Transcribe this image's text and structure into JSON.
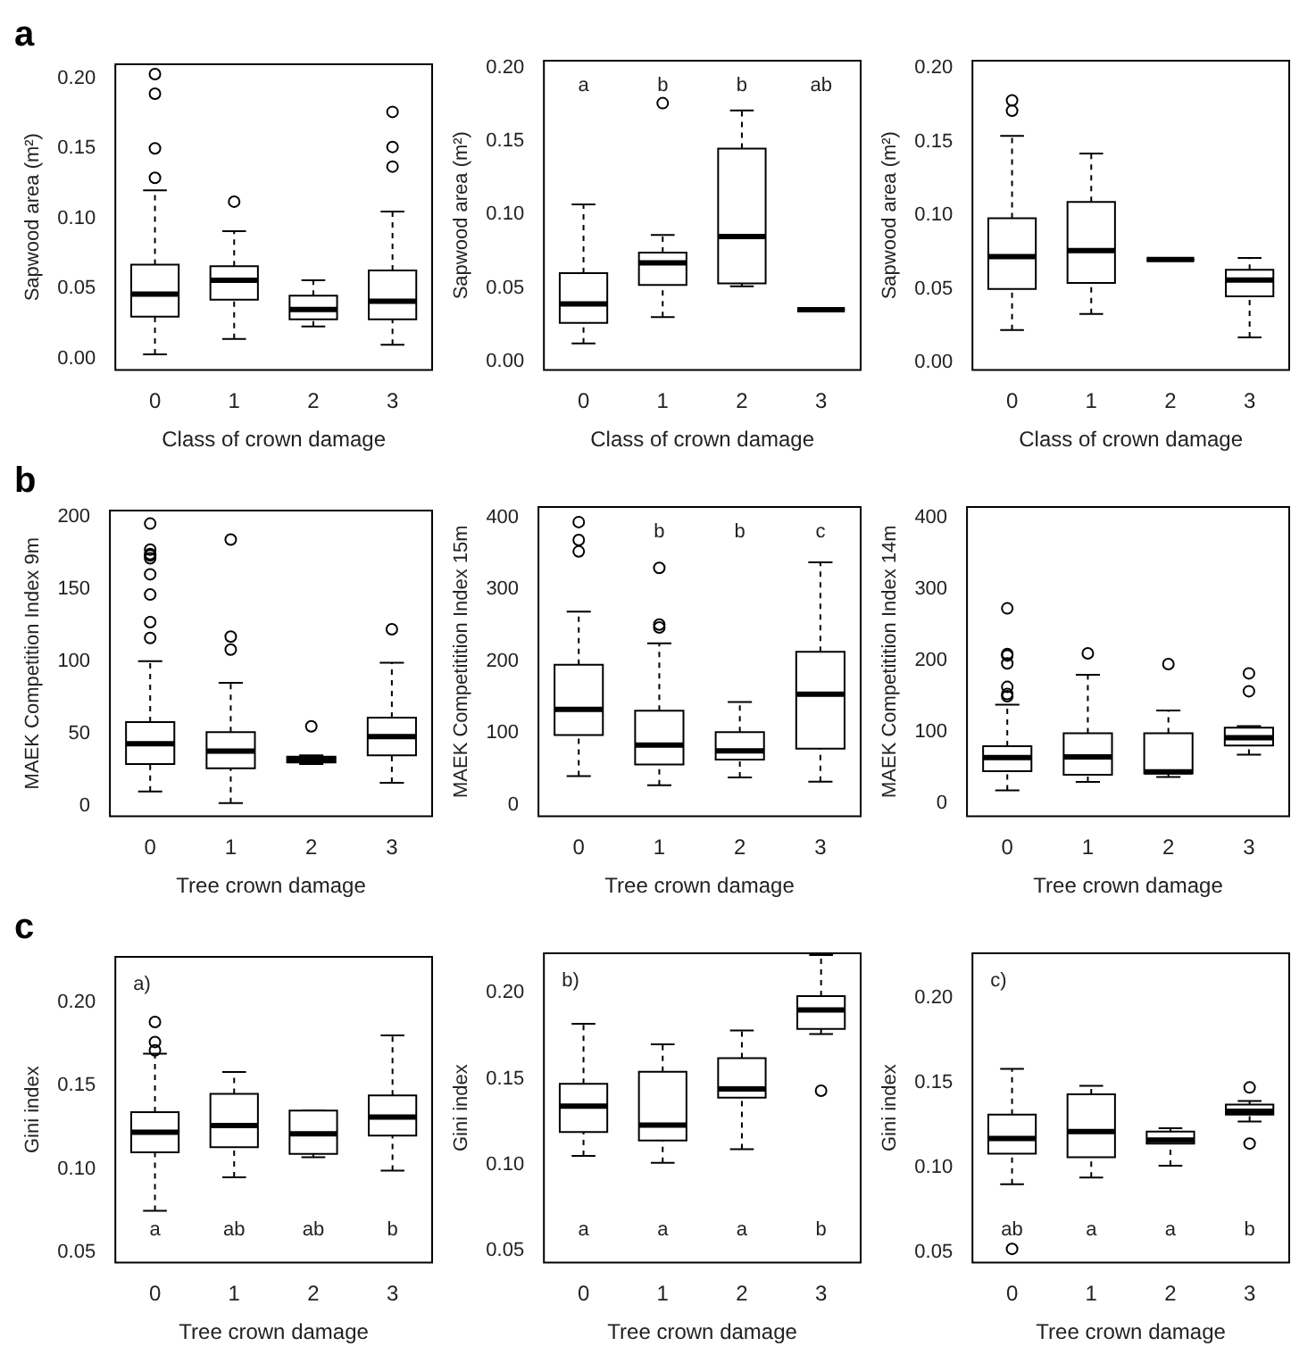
{
  "chart_data": [
    {
      "type": "box",
      "title": "a",
      "xlabel": "Class of crown damage",
      "ylabel": "Sapwood area (m²)",
      "categories": [
        "0",
        "1",
        "2",
        "3"
      ],
      "ylim": [
        -0.008,
        0.21
      ],
      "yticks": [
        {
          "value": 0,
          "label": "0.00"
        },
        {
          "value": 0.05,
          "label": "0.05"
        },
        {
          "value": 0.1,
          "label": "0.10"
        },
        {
          "value": 0.15,
          "label": "0.15"
        },
        {
          "value": 0.2,
          "label": "0.20"
        }
      ],
      "boxes": [
        {
          "low": 0.003,
          "q1": 0.03,
          "median": 0.046,
          "q3": 0.067,
          "high": 0.12,
          "outliers": [
            0.203,
            0.189,
            0.15,
            0.129
          ]
        },
        {
          "low": 0.014,
          "q1": 0.042,
          "median": 0.056,
          "q3": 0.066,
          "high": 0.091,
          "outliers": [
            0.112
          ]
        },
        {
          "low": 0.023,
          "q1": 0.028,
          "median": 0.035,
          "q3": 0.045,
          "high": 0.056
        },
        {
          "low": 0.01,
          "q1": 0.028,
          "median": 0.041,
          "q3": 0.063,
          "high": 0.105,
          "outliers": [
            0.176,
            0.151,
            0.137
          ]
        }
      ]
    },
    {
      "type": "box",
      "xlabel": "Class of crown damage",
      "ylabel": "Sapwood area (m²)",
      "categories": [
        "0",
        "1",
        "2",
        "3"
      ],
      "ylim": [
        -0.006,
        0.205
      ],
      "yticks": [
        {
          "value": 0,
          "label": "0.00"
        },
        {
          "value": 0.05,
          "label": "0.05"
        },
        {
          "value": 0.1,
          "label": "0.10"
        },
        {
          "value": 0.15,
          "label": "0.15"
        },
        {
          "value": 0.2,
          "label": "0.20"
        }
      ],
      "boxes": [
        {
          "low": 0.012,
          "q1": 0.026,
          "median": 0.039,
          "q3": 0.06,
          "high": 0.107
        },
        {
          "low": 0.03,
          "q1": 0.052,
          "median": 0.067,
          "q3": 0.074,
          "high": 0.086,
          "outliers": [
            0.176
          ]
        },
        {
          "low": 0.051,
          "q1": 0.053,
          "median": 0.085,
          "q3": 0.145,
          "high": 0.171
        },
        {
          "low": 0.035,
          "q1": 0.035,
          "median": 0.035,
          "q3": 0.035,
          "high": 0.035
        }
      ],
      "annotations": [
        "a",
        "b",
        "b",
        "ab"
      ]
    },
    {
      "type": "box",
      "xlabel": "Class of crown damage",
      "ylabel": "Sapwood area (m²)",
      "categories": [
        "0",
        "1",
        "2",
        "3"
      ],
      "ylim": [
        -0.005,
        0.205
      ],
      "yticks": [
        {
          "value": 0,
          "label": "0.00"
        },
        {
          "value": 0.05,
          "label": "0.05"
        },
        {
          "value": 0.1,
          "label": "0.10"
        },
        {
          "value": 0.15,
          "label": "0.15"
        },
        {
          "value": 0.2,
          "label": "0.20"
        }
      ],
      "boxes": [
        {
          "low": 0.022,
          "q1": 0.05,
          "median": 0.072,
          "q3": 0.098,
          "high": 0.154,
          "outliers": [
            0.178,
            0.171
          ]
        },
        {
          "low": 0.033,
          "q1": 0.054,
          "median": 0.076,
          "q3": 0.109,
          "high": 0.142
        },
        {
          "low": 0.07,
          "q1": 0.07,
          "median": 0.07,
          "q3": 0.07,
          "high": 0.07
        },
        {
          "low": 0.017,
          "q1": 0.045,
          "median": 0.056,
          "q3": 0.063,
          "high": 0.071
        }
      ]
    },
    {
      "type": "box",
      "title": "b",
      "xlabel": "Tree crown damage",
      "ylabel": "MAEK Competition Index 9m",
      "categories": [
        "0",
        "1",
        "2",
        "3"
      ],
      "ylim": [
        -7,
        204
      ],
      "yticks": [
        0,
        50,
        100,
        150,
        200
      ],
      "boxes": [
        {
          "low": 10,
          "q1": 29,
          "median": 43,
          "q3": 58,
          "high": 100,
          "outliers": [
            195,
            177,
            174,
            173,
            171,
            160,
            146,
            127,
            116
          ]
        },
        {
          "low": 2,
          "q1": 26,
          "median": 38,
          "q3": 51,
          "high": 85,
          "outliers": [
            184,
            117,
            108
          ]
        },
        {
          "low": 29,
          "q1": 30,
          "median": 32,
          "q3": 34,
          "high": 35,
          "outliers": [
            55
          ]
        },
        {
          "low": 16,
          "q1": 35,
          "median": 48,
          "q3": 61,
          "high": 99,
          "outliers": [
            122
          ]
        }
      ]
    },
    {
      "type": "box",
      "xlabel": "Tree crown damage",
      "ylabel": "MAEK Competitition Index 15m",
      "categories": [
        "0",
        "1",
        "2",
        "3"
      ],
      "ylim": [
        -16,
        415
      ],
      "yticks": [
        0,
        100,
        200,
        300,
        400
      ],
      "boxes": [
        {
          "low": 40,
          "q1": 97,
          "median": 133,
          "q3": 195,
          "high": 269,
          "outliers": [
            394,
            369,
            353
          ]
        },
        {
          "low": 27,
          "q1": 56,
          "median": 83,
          "q3": 131,
          "high": 225,
          "outliers": [
            330,
            251,
            247
          ]
        },
        {
          "low": 38,
          "q1": 63,
          "median": 75,
          "q3": 101,
          "high": 143
        },
        {
          "low": 32,
          "q1": 78,
          "median": 154,
          "q3": 213,
          "high": 338
        }
      ],
      "annotations": [
        null,
        "b",
        "b",
        "c"
      ]
    },
    {
      "type": "box",
      "xlabel": "Tree crown damage",
      "ylabel": "MAEK Competitition Index 14m",
      "categories": [
        "0",
        "1",
        "2",
        "3"
      ],
      "ylim": [
        -18,
        415
      ],
      "yticks": [
        0,
        100,
        200,
        300,
        400
      ],
      "boxes": [
        {
          "low": 18,
          "q1": 45,
          "median": 64,
          "q3": 80,
          "high": 138,
          "outliers": [
            273,
            209,
            207,
            196,
            163,
            153,
            150
          ]
        },
        {
          "low": 30,
          "q1": 40,
          "median": 65,
          "q3": 98,
          "high": 180,
          "outliers": [
            210
          ]
        },
        {
          "low": 37,
          "q1": 42,
          "median": 44,
          "q3": 98,
          "high": 130,
          "outliers": [
            195
          ]
        },
        {
          "low": 68,
          "q1": 81,
          "median": 92,
          "q3": 106,
          "high": 108,
          "outliers": [
            182,
            157
          ]
        }
      ]
    },
    {
      "type": "box",
      "title": "c",
      "xlabel": "Tree crown damage",
      "ylabel": "Gini index",
      "categories": [
        "0",
        "1",
        "2",
        "3"
      ],
      "ylim": [
        0.044,
        0.227
      ],
      "yticks": [
        0.05,
        {
          "value": 0.1,
          "label": "0.10"
        },
        0.15,
        {
          "value": 0.2,
          "label": "0.20"
        }
      ],
      "boxes": [
        {
          "low": 0.075,
          "q1": 0.11,
          "median": 0.122,
          "q3": 0.134,
          "high": 0.169,
          "outliers": [
            0.188,
            0.176,
            0.171
          ]
        },
        {
          "low": 0.095,
          "q1": 0.113,
          "median": 0.126,
          "q3": 0.145,
          "high": 0.158
        },
        {
          "low": 0.107,
          "q1": 0.109,
          "median": 0.121,
          "q3": 0.135,
          "high": 0.135
        },
        {
          "low": 0.099,
          "q1": 0.12,
          "median": 0.131,
          "q3": 0.144,
          "high": 0.18
        }
      ],
      "subtitle": "a)",
      "annotations": [
        "a",
        "ab",
        "ab",
        "b"
      ]
    },
    {
      "type": "box",
      "xlabel": "Tree crown damage",
      "ylabel": "Gini index",
      "categories": [
        "0",
        "1",
        "2",
        "3"
      ],
      "ylim": [
        0.043,
        0.223
      ],
      "yticks": [
        0.05,
        {
          "value": 0.1,
          "label": "0.10"
        },
        0.15,
        {
          "value": 0.2,
          "label": "0.20"
        }
      ],
      "boxes": [
        {
          "low": 0.105,
          "q1": 0.119,
          "median": 0.134,
          "q3": 0.147,
          "high": 0.182
        },
        {
          "low": 0.101,
          "q1": 0.114,
          "median": 0.123,
          "q3": 0.154,
          "high": 0.17
        },
        {
          "low": 0.109,
          "q1": 0.139,
          "median": 0.144,
          "q3": 0.162,
          "high": 0.178
        },
        {
          "low": 0.176,
          "q1": 0.179,
          "median": 0.19,
          "q3": 0.198,
          "high": 0.222,
          "outliers": [
            0.143
          ]
        }
      ],
      "subtitle": "b)",
      "annotations": [
        "a",
        "a",
        "a",
        "b"
      ]
    },
    {
      "type": "box",
      "xlabel": "Tree crown damage",
      "ylabel": "Gini index",
      "categories": [
        "0",
        "1",
        "2",
        "3"
      ],
      "ylim": [
        0.044,
        0.226
      ],
      "yticks": [
        0.05,
        {
          "value": 0.1,
          "label": "0.10"
        },
        0.15,
        {
          "value": 0.2,
          "label": "0.20"
        }
      ],
      "boxes": [
        {
          "low": 0.09,
          "q1": 0.108,
          "median": 0.117,
          "q3": 0.131,
          "high": 0.158,
          "outliers": [
            0.052
          ]
        },
        {
          "low": 0.094,
          "q1": 0.106,
          "median": 0.121,
          "q3": 0.143,
          "high": 0.148
        },
        {
          "low": 0.101,
          "q1": 0.114,
          "median": 0.116,
          "q3": 0.121,
          "high": 0.123
        },
        {
          "low": 0.127,
          "q1": 0.131,
          "median": 0.133,
          "q3": 0.137,
          "high": 0.139,
          "outliers": [
            0.147,
            0.114
          ]
        }
      ],
      "subtitle": "c)",
      "annotations": [
        "ab",
        "a",
        "a",
        "b"
      ]
    }
  ]
}
